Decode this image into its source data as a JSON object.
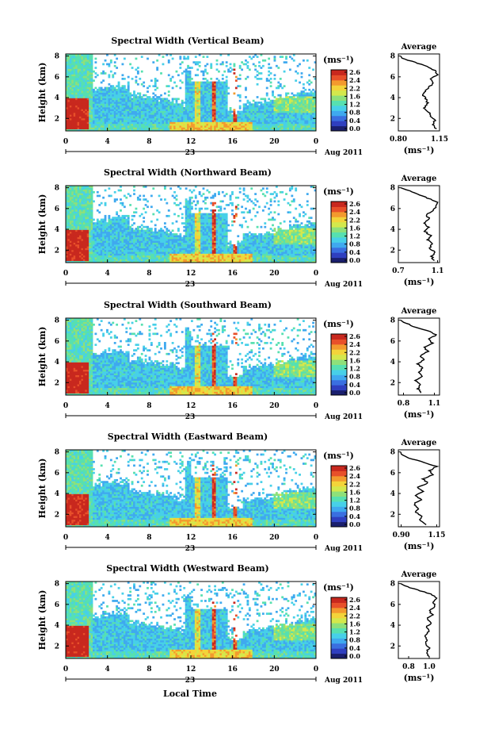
{
  "colors": {
    "colormap": [
      "#1a1f6e",
      "#2f3fbf",
      "#3a6fe0",
      "#3fa9ef",
      "#47d0e8",
      "#57e0b0",
      "#8ee07a",
      "#d4e84c",
      "#f3d43a",
      "#f39a2e",
      "#e8502a",
      "#c8281e"
    ],
    "background": "#ffffff",
    "axis": "#000000"
  },
  "colorbar": {
    "unit": "(ms⁻¹)",
    "tick_sets": [
      [
        "2.6",
        "2.4",
        "2.2",
        "1.6",
        "1.2",
        "0.8",
        "0.4",
        "0.0"
      ],
      [
        "2.6",
        "2.4",
        "2.2",
        "1.6",
        "1.2",
        "0.8",
        "0.4",
        "0.0"
      ],
      [
        "2.6",
        "2.4",
        "2.2",
        "1.6",
        "1.2",
        "0.8",
        "0.4",
        "0.0"
      ],
      [
        "2.6",
        "2.4",
        "2.2",
        "1.6",
        "1.2",
        "0.8",
        "0.4",
        "0.0"
      ],
      [
        "2.6",
        "2.4",
        "2.2",
        "1.6",
        "1.2",
        "0.8",
        "0.4",
        "0.0"
      ]
    ]
  },
  "common": {
    "ylabel": "Height (km)",
    "xlabel": "Local Time",
    "date_center": "23",
    "date_right": "Aug 2011",
    "profile_title": "Average",
    "profile_unit": "(ms⁻¹)"
  },
  "chart_data": [
    {
      "type": "heatmap",
      "title": "Spectral Width (Vertical Beam)",
      "ylabel": "Height (km)",
      "x_ticks": [
        "0",
        "4",
        "8",
        "12",
        "16",
        "20",
        "0"
      ],
      "y_ticks": [
        "2",
        "4",
        "6",
        "8"
      ],
      "xlim": [
        0,
        24
      ],
      "ylim": [
        0.8,
        8.2
      ],
      "profile": {
        "title": "Average",
        "x_ticks": [
          "0.80",
          "1.15"
        ],
        "y_ticks": [
          "2",
          "4",
          "6",
          "8"
        ],
        "xlim": [
          0.8,
          1.15
        ],
        "height": [
          1.0,
          1.4,
          1.8,
          2.2,
          2.6,
          3.0,
          3.4,
          3.8,
          4.2,
          4.6,
          5.0,
          5.4,
          5.8,
          6.2,
          6.6,
          7.0,
          7.4,
          7.8
        ],
        "value": [
          1.12,
          1.09,
          1.11,
          1.07,
          1.06,
          1.02,
          1.05,
          1.04,
          1.01,
          1.03,
          1.06,
          1.1,
          1.08,
          1.13,
          1.11,
          1.05,
          0.94,
          0.83
        ]
      }
    },
    {
      "type": "heatmap",
      "title": "Spectral Width (Northward Beam)",
      "ylabel": "Height (km)",
      "x_ticks": [
        "0",
        "4",
        "8",
        "12",
        "16",
        "20",
        "0"
      ],
      "y_ticks": [
        "2",
        "4",
        "6",
        "8"
      ],
      "xlim": [
        0,
        24
      ],
      "ylim": [
        0.8,
        8.2
      ],
      "profile": {
        "title": "Average",
        "x_ticks": [
          "0.7",
          "1.1"
        ],
        "y_ticks": [
          "2",
          "4",
          "6",
          "8"
        ],
        "xlim": [
          0.7,
          1.12
        ],
        "height": [
          1.0,
          1.4,
          1.8,
          2.2,
          2.6,
          3.0,
          3.4,
          3.8,
          4.2,
          4.6,
          5.0,
          5.4,
          5.8,
          6.2,
          6.6,
          7.0,
          7.4,
          7.8
        ],
        "value": [
          1.06,
          1.04,
          1.07,
          1.02,
          1.05,
          1.0,
          1.03,
          0.97,
          1.01,
          0.96,
          1.02,
          0.98,
          1.06,
          1.09,
          1.1,
          1.0,
          0.9,
          0.78
        ]
      }
    },
    {
      "type": "heatmap",
      "title": "Spectral Width (Southward Beam)",
      "ylabel": "Height (km)",
      "x_ticks": [
        "0",
        "4",
        "8",
        "12",
        "16",
        "20",
        "0"
      ],
      "y_ticks": [
        "2",
        "4",
        "6",
        "8"
      ],
      "xlim": [
        0,
        24
      ],
      "ylim": [
        0.8,
        8.2
      ],
      "profile": {
        "title": "Average",
        "x_ticks": [
          "0.8",
          "1.1"
        ],
        "y_ticks": [
          "2",
          "4",
          "6",
          "8"
        ],
        "xlim": [
          0.75,
          1.15
        ],
        "height": [
          1.0,
          1.4,
          1.8,
          2.2,
          2.6,
          3.0,
          3.4,
          3.8,
          4.2,
          4.6,
          5.0,
          5.4,
          5.8,
          6.2,
          6.6,
          7.0,
          7.4,
          7.8
        ],
        "value": [
          0.97,
          0.94,
          0.96,
          0.92,
          0.98,
          0.95,
          0.99,
          0.93,
          1.0,
          0.96,
          1.04,
          1.0,
          1.08,
          1.05,
          1.12,
          1.03,
          0.9,
          0.8
        ]
      }
    },
    {
      "type": "heatmap",
      "title": "Spectral Width (Eastward Beam)",
      "ylabel": "Height (km)",
      "x_ticks": [
        "0",
        "4",
        "8",
        "12",
        "16",
        "20",
        "0"
      ],
      "y_ticks": [
        "2",
        "4",
        "6",
        "8"
      ],
      "xlim": [
        0,
        24
      ],
      "ylim": [
        0.8,
        8.2
      ],
      "profile": {
        "title": "Average",
        "x_ticks": [
          "0.90",
          "1.15"
        ],
        "y_ticks": [
          "2",
          "4",
          "6",
          "8"
        ],
        "xlim": [
          0.88,
          1.17
        ],
        "height": [
          1.0,
          1.4,
          1.8,
          2.2,
          2.6,
          3.0,
          3.4,
          3.8,
          4.2,
          4.6,
          5.0,
          5.4,
          5.8,
          6.2,
          6.6,
          7.0,
          7.4,
          7.8
        ],
        "value": [
          1.07,
          1.03,
          1.05,
          1.0,
          1.02,
          0.99,
          1.04,
          1.0,
          1.06,
          1.01,
          1.09,
          1.05,
          1.12,
          1.1,
          1.15,
          1.06,
          0.95,
          0.9
        ]
      }
    },
    {
      "type": "heatmap",
      "title": "Spectral Width (Westward Beam)",
      "ylabel": "Height (km)",
      "x_ticks": [
        "0",
        "4",
        "8",
        "12",
        "16",
        "20",
        "0"
      ],
      "y_ticks": [
        "2",
        "4",
        "6",
        "8"
      ],
      "xlim": [
        0,
        24
      ],
      "ylim": [
        0.8,
        8.2
      ],
      "profile": {
        "title": "Average",
        "x_ticks": [
          "0.8",
          "1.0"
        ],
        "y_ticks": [
          "2",
          "4",
          "6",
          "8"
        ],
        "xlim": [
          0.7,
          1.1
        ],
        "height": [
          1.0,
          1.4,
          1.8,
          2.2,
          2.6,
          3.0,
          3.4,
          3.8,
          4.2,
          4.6,
          5.0,
          5.4,
          5.8,
          6.2,
          6.6,
          7.0,
          7.4,
          7.8
        ],
        "value": [
          0.99,
          0.97,
          1.0,
          0.96,
          0.98,
          0.95,
          1.0,
          0.97,
          1.02,
          0.98,
          1.03,
          1.0,
          1.06,
          1.04,
          1.08,
          1.02,
          0.88,
          0.76
        ]
      }
    }
  ]
}
